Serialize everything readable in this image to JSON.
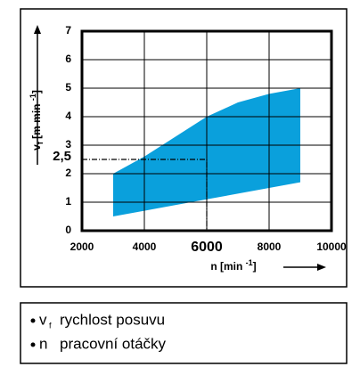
{
  "chart_data": {
    "type": "band",
    "band": {
      "x": [
        3000,
        4000,
        6000,
        7000,
        8000,
        9000
      ],
      "high": [
        2.0,
        2.6,
        4.0,
        4.5,
        4.8,
        5.0
      ],
      "low": [
        0.5,
        0.7,
        1.1,
        1.3,
        1.5,
        1.7
      ],
      "color": "#0aa0dc"
    },
    "xlim": [
      2000,
      10000
    ],
    "xticks": [
      2000,
      4000,
      6000,
      8000,
      10000
    ],
    "ylim": [
      0,
      7
    ],
    "yticks": [
      0,
      1,
      2,
      3,
      4,
      5,
      6,
      7
    ],
    "grid": true,
    "marker": {
      "x": 6000,
      "y": {
        "value": 2.5,
        "label": "2,5"
      }
    },
    "ylabel": {
      "main": "v",
      "sub": "f",
      "unit": " [m min ",
      "sup": "-1",
      "close": "]"
    },
    "xlabel": {
      "main": "n [min ",
      "sup": "-1",
      "close": "]"
    },
    "legend": [
      {
        "symbol": "v",
        "sub": "f",
        "text": "rychlost posuvu"
      },
      {
        "symbol": "n",
        "sub": "",
        "text": "pracovní otáčky"
      }
    ]
  }
}
